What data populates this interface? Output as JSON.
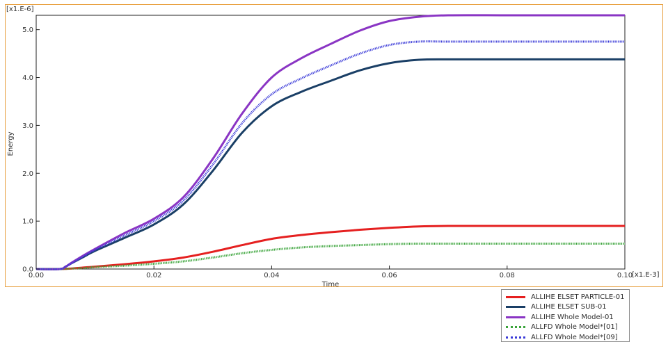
{
  "chart_data": {
    "type": "line",
    "xlabel": "Time",
    "ylabel": "Energy",
    "x_multiplier": "[x1.E-3]",
    "y_multiplier": "[x1.E-6]",
    "xlim": [
      0,
      0.1
    ],
    "ylim": [
      0,
      5.3
    ],
    "x_ticks": [
      "0.00",
      "0.02",
      "0.04",
      "0.06",
      "0.08",
      "0.10"
    ],
    "y_ticks": [
      "0.0",
      "1.0",
      "2.0",
      "3.0",
      "4.0",
      "5.0"
    ],
    "grid": false,
    "legend_position": "bottom-right, outside plot",
    "series": [
      {
        "name": "ALLIHE ELSET PARTICLE-01",
        "color": "#e52020",
        "style": "solid",
        "x": [
          0,
          0.004,
          0.006,
          0.008,
          0.01,
          0.015,
          0.02,
          0.025,
          0.03,
          0.035,
          0.04,
          0.045,
          0.05,
          0.055,
          0.06,
          0.065,
          0.07,
          0.08,
          0.09,
          0.1
        ],
        "y": [
          0,
          0,
          0.01,
          0.03,
          0.05,
          0.1,
          0.16,
          0.24,
          0.36,
          0.5,
          0.63,
          0.71,
          0.77,
          0.82,
          0.86,
          0.89,
          0.9,
          0.9,
          0.9,
          0.9
        ]
      },
      {
        "name": "ALLIHE ELSET SUB-01",
        "color": "#1a3f66",
        "style": "solid",
        "x": [
          0,
          0.004,
          0.005,
          0.006,
          0.008,
          0.01,
          0.015,
          0.02,
          0.025,
          0.03,
          0.035,
          0.04,
          0.045,
          0.05,
          0.055,
          0.06,
          0.065,
          0.07,
          0.08,
          0.09,
          0.1
        ],
        "y": [
          0,
          0,
          0.05,
          0.12,
          0.25,
          0.38,
          0.65,
          0.93,
          1.35,
          2.05,
          2.85,
          3.4,
          3.7,
          3.93,
          4.15,
          4.3,
          4.37,
          4.38,
          4.38,
          4.38,
          4.38
        ]
      },
      {
        "name": "ALLIHE Whole Model-01",
        "color": "#8a35c4",
        "style": "solid",
        "x": [
          0,
          0.004,
          0.005,
          0.006,
          0.008,
          0.01,
          0.015,
          0.02,
          0.025,
          0.03,
          0.035,
          0.04,
          0.045,
          0.05,
          0.055,
          0.06,
          0.065,
          0.07,
          0.08,
          0.09,
          0.1
        ],
        "y": [
          0,
          0,
          0.05,
          0.13,
          0.28,
          0.42,
          0.75,
          1.05,
          1.5,
          2.3,
          3.25,
          4.0,
          4.4,
          4.7,
          4.98,
          5.18,
          5.27,
          5.3,
          5.3,
          5.3,
          5.3
        ]
      },
      {
        "name": "ALLFD Whole Model*[01]",
        "color": "#3aa43a",
        "style": "dotted",
        "x": [
          0,
          0.004,
          0.006,
          0.008,
          0.01,
          0.015,
          0.02,
          0.025,
          0.03,
          0.035,
          0.04,
          0.045,
          0.05,
          0.055,
          0.06,
          0.065,
          0.07,
          0.08,
          0.09,
          0.1
        ],
        "y": [
          0,
          0,
          0.01,
          0.02,
          0.04,
          0.07,
          0.11,
          0.16,
          0.24,
          0.33,
          0.4,
          0.45,
          0.48,
          0.5,
          0.52,
          0.53,
          0.53,
          0.53,
          0.53,
          0.53
        ]
      },
      {
        "name": "ALLFD Whole Model*[09]",
        "color": "#3a3ad8",
        "style": "dotted",
        "x": [
          0,
          0.004,
          0.005,
          0.006,
          0.008,
          0.01,
          0.015,
          0.02,
          0.025,
          0.03,
          0.035,
          0.04,
          0.045,
          0.05,
          0.055,
          0.06,
          0.065,
          0.07,
          0.08,
          0.09,
          0.1
        ],
        "y": [
          0,
          0,
          0.05,
          0.12,
          0.26,
          0.4,
          0.7,
          1.0,
          1.43,
          2.18,
          3.05,
          3.65,
          3.98,
          4.25,
          4.5,
          4.68,
          4.75,
          4.75,
          4.75,
          4.75,
          4.75
        ]
      }
    ]
  }
}
